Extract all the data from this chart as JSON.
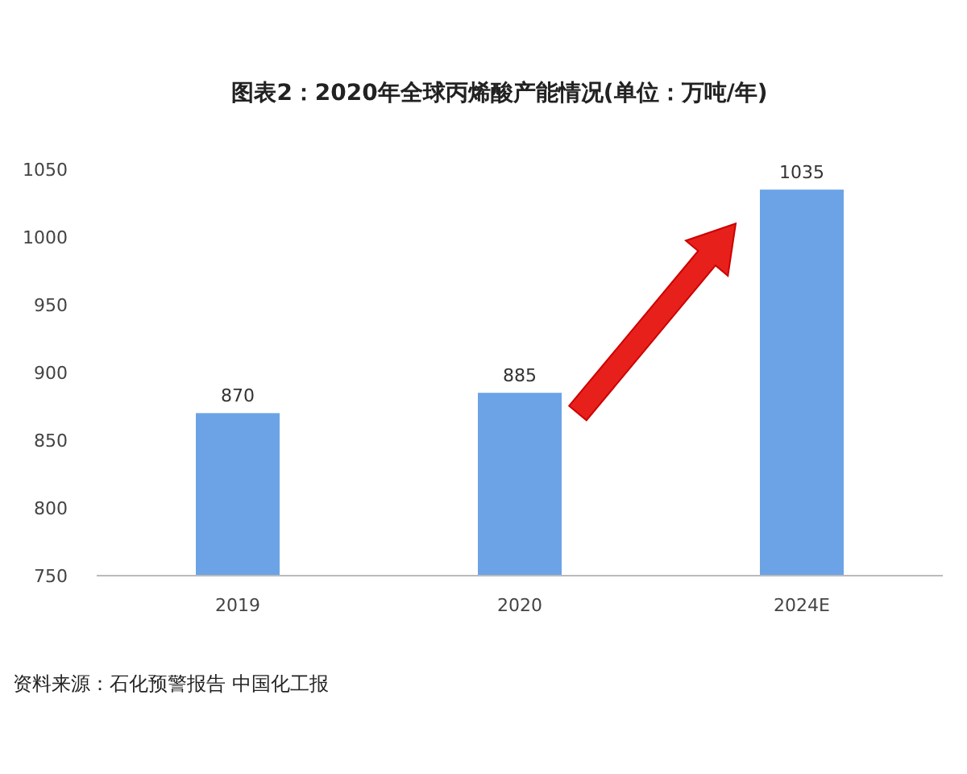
{
  "chart_data": {
    "type": "bar",
    "title": "图表2：2020年全球丙烯酸产能情况(单位：万吨/年)",
    "categories": [
      "2019",
      "2020",
      "2024E"
    ],
    "values": [
      870,
      885,
      1035
    ],
    "color": "#6ca3e6",
    "ylim": [
      750,
      1050
    ],
    "yticks": [
      750,
      800,
      850,
      900,
      950,
      1000,
      1050
    ],
    "grid": false,
    "data_labels": true,
    "annotations": [
      "资料来源：石化预警报告 中国化工报"
    ]
  }
}
